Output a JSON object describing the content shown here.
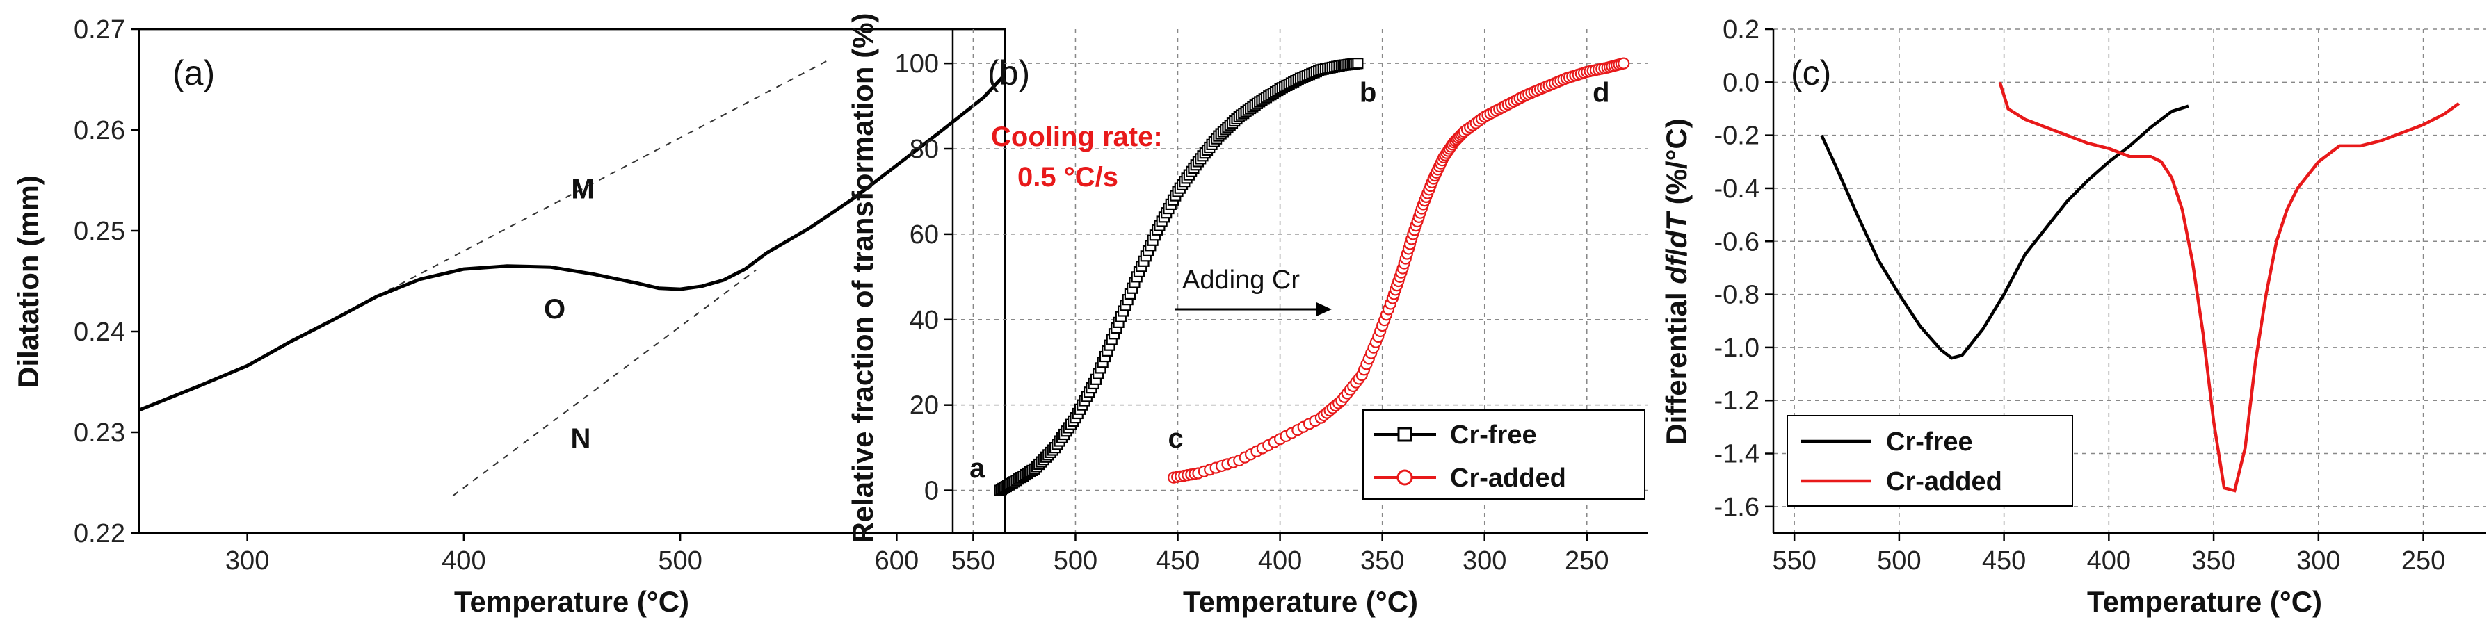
{
  "chart_data": [
    {
      "type": "line",
      "panel": "(a)",
      "xlabel": "Temperature (°C)",
      "ylabel": "Dilatation (mm)",
      "xlim": [
        250,
        650
      ],
      "ylim": [
        0.22,
        0.27
      ],
      "xticks": [
        300,
        400,
        500,
        600
      ],
      "yticks": [
        0.22,
        0.23,
        0.24,
        0.25,
        0.26,
        0.27
      ],
      "ytick_labels": [
        "0.22",
        "0.23",
        "0.24",
        "0.25",
        "0.26",
        "0.27"
      ],
      "series": [
        {
          "name": "Dilatation",
          "color": "#000000",
          "x": [
            250,
            280,
            300,
            320,
            340,
            360,
            380,
            400,
            420,
            440,
            460,
            480,
            490,
            500,
            510,
            520,
            530,
            540,
            560,
            580,
            600,
            620,
            640,
            650
          ],
          "y": [
            0.2322,
            0.2348,
            0.2366,
            0.239,
            0.2412,
            0.2435,
            0.2452,
            0.2462,
            0.2465,
            0.2464,
            0.2457,
            0.2448,
            0.2443,
            0.2442,
            0.2445,
            0.2451,
            0.2462,
            0.2478,
            0.2503,
            0.2532,
            0.2565,
            0.2598,
            0.2632,
            0.2655
          ]
        }
      ],
      "reference_lines": [
        {
          "name": "M",
          "x": [
            360,
            570
          ],
          "y": [
            0.2435,
            0.2671
          ]
        },
        {
          "name": "N",
          "x": [
            395,
            535
          ],
          "y": [
            0.2237,
            0.2461
          ]
        }
      ],
      "annotations": [
        {
          "text": "M",
          "x": 455,
          "y": 0.2532
        },
        {
          "text": "O",
          "x": 442,
          "y": 0.2413
        },
        {
          "text": "N",
          "x": 454,
          "y": 0.2285
        }
      ]
    },
    {
      "type": "scatter",
      "panel": "(b)",
      "xlabel": "Temperature (°C)",
      "ylabel": "Relative fraction of transformation (%)",
      "xlim": [
        560,
        220
      ],
      "ylim": [
        -10,
        108
      ],
      "xticks": [
        550,
        500,
        450,
        400,
        350,
        300,
        250
      ],
      "yticks": [
        0,
        20,
        40,
        60,
        80,
        100
      ],
      "series": [
        {
          "name": "Cr-free",
          "color": "#000000",
          "marker": "square",
          "x": [
            537,
            530,
            520,
            510,
            500,
            490,
            480,
            470,
            460,
            450,
            440,
            430,
            420,
            410,
            400,
            390,
            380,
            370,
            362
          ],
          "y": [
            0,
            2,
            5,
            10,
            17,
            26,
            38,
            50,
            61,
            70,
            77,
            83,
            87.5,
            91,
            94,
            96.5,
            98.5,
            99.5,
            100
          ]
        },
        {
          "name": "Cr-added",
          "color": "#e8191a",
          "marker": "circle",
          "x": [
            452,
            440,
            420,
            400,
            380,
            370,
            360,
            352,
            345,
            340,
            335,
            330,
            325,
            320,
            315,
            310,
            300,
            290,
            280,
            270,
            260,
            250,
            240,
            232
          ],
          "y": [
            3,
            4,
            7,
            12,
            17,
            21,
            27,
            36,
            45,
            52,
            60,
            67,
            73,
            78,
            81.5,
            84,
            87.5,
            90,
            92.5,
            94.5,
            96.5,
            98,
            99,
            100
          ]
        }
      ],
      "point_labels": [
        {
          "text": "a",
          "x": 548,
          "y": 3
        },
        {
          "text": "b",
          "x": 357,
          "y": 91
        },
        {
          "text": "c",
          "x": 451,
          "y": 10
        },
        {
          "text": "d",
          "x": 243,
          "y": 91
        }
      ],
      "annotations": [
        {
          "text": "Cooling rate:",
          "color": "#e8191a"
        },
        {
          "text": "0.5 °C/s",
          "color": "#e8191a"
        },
        {
          "text": "Adding Cr",
          "color": "#111111"
        }
      ],
      "legend": {
        "position": "bottom-right",
        "entries": [
          "Cr-free",
          "Cr-added"
        ]
      }
    },
    {
      "type": "line",
      "panel": "(c)",
      "xlabel": "Temperature (°C)",
      "ylabel": "Differential df/dT (%/°C)",
      "ylabel_parts": [
        "Differential ",
        "df",
        "/",
        "dT",
        " (%/°C)"
      ],
      "xlim": [
        560,
        220
      ],
      "ylim": [
        -1.7,
        0.2
      ],
      "xticks": [
        550,
        500,
        450,
        400,
        350,
        300,
        250
      ],
      "yticks": [
        0.2,
        0.0,
        -0.2,
        -0.4,
        -0.6,
        -0.8,
        -1.0,
        -1.2,
        -1.4,
        -1.6
      ],
      "ytick_labels": [
        "0.2",
        "0.0",
        "-0.2",
        "-0.4",
        "-0.6",
        "-0.8",
        "-1.0",
        "-1.2",
        "-1.4",
        "-1.6"
      ],
      "series": [
        {
          "name": "Cr-free",
          "color": "#000000",
          "x": [
            537,
            530,
            520,
            510,
            500,
            490,
            480,
            475,
            470,
            465,
            460,
            450,
            440,
            430,
            420,
            410,
            400,
            390,
            380,
            370,
            362
          ],
          "y": [
            -0.2,
            -0.32,
            -0.5,
            -0.67,
            -0.8,
            -0.92,
            -1.01,
            -1.04,
            -1.03,
            -0.98,
            -0.93,
            -0.8,
            -0.65,
            -0.55,
            -0.45,
            -0.37,
            -0.3,
            -0.24,
            -0.17,
            -0.11,
            -0.09
          ]
        },
        {
          "name": "Cr-added",
          "color": "#e8191a",
          "x": [
            452,
            448,
            440,
            430,
            420,
            410,
            400,
            390,
            380,
            375,
            370,
            365,
            360,
            355,
            350,
            345,
            340,
            335,
            330,
            325,
            320,
            315,
            310,
            300,
            290,
            280,
            270,
            260,
            250,
            240,
            233
          ],
          "y": [
            0.0,
            -0.1,
            -0.14,
            -0.17,
            -0.2,
            -0.23,
            -0.25,
            -0.28,
            -0.28,
            -0.3,
            -0.36,
            -0.48,
            -0.68,
            -0.95,
            -1.28,
            -1.53,
            -1.54,
            -1.38,
            -1.05,
            -0.8,
            -0.6,
            -0.48,
            -0.4,
            -0.3,
            -0.24,
            -0.24,
            -0.22,
            -0.19,
            -0.16,
            -0.12,
            -0.08
          ]
        }
      ],
      "legend": {
        "position": "bottom-left",
        "entries": [
          "Cr-free",
          "Cr-added"
        ]
      }
    }
  ]
}
